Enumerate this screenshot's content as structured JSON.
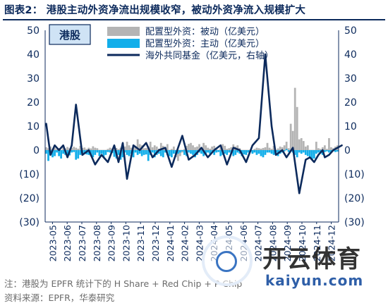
{
  "title": "图表2： 港股主动外资净流出规模收窄，被动外资净流入规模扩大",
  "chart_data": {
    "type": "bar",
    "panel_label": "港股",
    "yticks_left": [
      "50",
      "40",
      "30",
      "20",
      "10",
      "0",
      "(10)",
      "(20)",
      "(30)"
    ],
    "yticks_right": [
      "50",
      "40",
      "30",
      "20",
      "10",
      "0",
      "(10)",
      "(20)",
      "(30)"
    ],
    "ylim": [
      -30,
      50
    ],
    "y2lim": [
      -30,
      50
    ],
    "xticks": [
      "2023-05",
      "2023-06",
      "2023-07",
      "2023-08",
      "2023-09",
      "2023-10",
      "2023-11",
      "2023-12",
      "2024-01",
      "2024-02",
      "2024-03",
      "2024-04",
      "2024-05",
      "2024-06",
      "2024-07",
      "2024-08",
      "2024-09",
      "2024-10",
      "2024-11",
      "2024-12"
    ],
    "legend": [
      {
        "label": "配置型外资：被动（亿美元）",
        "color": "#b4b4b4",
        "kind": "bar"
      },
      {
        "label": "配置型外资：主动（亿美元）",
        "color": "#12aeea",
        "kind": "bar"
      },
      {
        "label": "海外共同基金（亿美元，右轴）",
        "color": "#0c2a5c",
        "kind": "line"
      }
    ],
    "series": [
      {
        "name": "配置型外资：被动（亿美元）",
        "axis": "left",
        "values": [
          1.2,
          0.8,
          1.5,
          0.6,
          1.0,
          0.4,
          0.9,
          -0.5,
          1.1,
          0.7,
          1.3,
          0.8,
          0.9,
          1.4,
          1.0,
          0.6,
          1.8,
          0.9,
          1.1,
          0.5,
          1.0,
          0.7,
          1.6,
          1.0,
          0.8,
          -0.8,
          -1.0,
          -0.6,
          -0.4,
          0.5,
          1.0,
          0.7,
          1.3,
          0.9,
          0.4,
          1.0,
          3.0,
          1.5,
          3.5,
          2.0,
          1.0,
          2.2,
          1.2,
          4.5,
          2.5,
          2.0,
          0.8,
          0.9,
          1.5,
          3.5,
          1.2,
          2.0,
          1.5,
          0.6,
          3.0,
          1.8,
          1.0,
          2.5,
          -0.4,
          0.5,
          1.5,
          -3.0,
          -4.5,
          -2.5,
          -1.0,
          0.5,
          1.8,
          2.6,
          3.0,
          2.0,
          1.2,
          1.5,
          2.5,
          0.8,
          3.0,
          2.0,
          1.0,
          0.6,
          1.5,
          1.8,
          1.0,
          -0.3,
          1.0,
          2.5,
          1.8,
          0.5,
          0.8,
          1.2,
          2.4,
          1.5,
          2.0,
          0.8,
          -0.5,
          -1.2,
          -1.4,
          -0.8,
          -0.6,
          -1.0,
          0.5,
          1.0,
          0.8,
          0.6,
          0.9,
          1.2,
          3.0,
          1.0,
          0.5,
          1.8,
          -0.5,
          0.7,
          1.5,
          1.2,
          2.0,
          3.5,
          0.8,
          11.0,
          8.0,
          26.0,
          18.0,
          4.5,
          5.0,
          3.8,
          1.5,
          2.0,
          -1.0,
          -1.8,
          -1.2,
          3.5,
          0.8,
          0.5,
          1.2,
          2.0,
          0.5,
          5.0,
          1.2,
          0.8,
          1.5,
          2.0
        ],
        "color": "#b4b4b4"
      },
      {
        "name": "配置型外资：主动（亿美元）",
        "axis": "left",
        "values": [
          -1.5,
          -4.5,
          -2.0,
          -3.0,
          -2.5,
          -1.0,
          -2.5,
          -3.5,
          -1.5,
          -2.0,
          -3.0,
          -2.2,
          -1.0,
          -0.8,
          -4.0,
          -3.5,
          -2.0,
          -1.2,
          -1.5,
          -1.8,
          -2.0,
          -2.5,
          -3.0,
          -2.0,
          -1.0,
          -2.5,
          -1.5,
          -3.0,
          -2.0,
          -0.8,
          -1.0,
          -1.2,
          -2.8,
          -3.5,
          -2.0,
          -4.0,
          -3.0,
          -1.0,
          -2.0,
          -2.5,
          -1.5,
          -3.0,
          -1.0,
          -2.0,
          -1.5,
          -2.5,
          -2.0,
          -1.8,
          -4.5,
          -2.0,
          -1.0,
          -3.0,
          -2.0,
          -1.5,
          -2.5,
          -3.0,
          -1.0,
          -2.0,
          -2.5,
          -3.0,
          -1.5,
          -2.0,
          -1.5,
          -1.0,
          -0.5,
          -2.0,
          -2.5,
          -1.0,
          -1.5,
          -2.0,
          -3.0,
          -2.0,
          -1.0,
          -1.5,
          -2.5,
          -2.0,
          -1.0,
          -1.5,
          -1.0,
          -2.0,
          -1.0,
          -0.8,
          -2.5,
          -2.0,
          -1.5,
          -2.0,
          -1.0,
          -1.5,
          -2.5,
          -2.0,
          -1.0,
          -1.5,
          -2.5,
          -1.8,
          -2.0,
          -1.0,
          -0.8,
          -1.5,
          -1.0,
          -2.0,
          -1.5,
          -2.5,
          -3.0,
          -2.0,
          -1.0,
          -1.0,
          -1.5,
          -2.0,
          -1.0,
          -2.5,
          -1.5,
          -1.0,
          -0.5,
          0.5,
          -0.8,
          -0.5,
          -1.0,
          -2.0,
          -3.0,
          -1.0,
          -1.5,
          -1.0,
          -2.0,
          -2.5,
          -3.0,
          -4.0,
          -3.5,
          -1.5,
          -1.0,
          -1.5,
          -2.0,
          -0.8,
          -0.5,
          -1.0,
          -1.0,
          -0.5,
          -0.8,
          -0.6
        ],
        "color": "#12aeea"
      },
      {
        "name": "海外共同基金（亿美元，右轴）",
        "axis": "right",
        "x": [
          0,
          2,
          4,
          6,
          8,
          10,
          12,
          14,
          17,
          20,
          23,
          26,
          29,
          32,
          34,
          36,
          38,
          41,
          44,
          47,
          50,
          53,
          56,
          59,
          62,
          64,
          67,
          70,
          73,
          76,
          79,
          82,
          85,
          88,
          91,
          94,
          97,
          100,
          103,
          106,
          108,
          111,
          113,
          116,
          119,
          122,
          124,
          126,
          128,
          130,
          131,
          133,
          135,
          137,
          139
        ],
        "values": [
          11,
          -2,
          2,
          0,
          2,
          -3,
          2,
          19,
          -2,
          0,
          -6,
          -2,
          -5,
          2,
          -5,
          3,
          -12,
          2,
          0,
          3,
          -3,
          0,
          1,
          -7,
          1,
          6,
          -4,
          -2,
          1,
          -3,
          0,
          2,
          -6,
          1,
          0,
          -5,
          2,
          5,
          40,
          10,
          -2,
          0,
          -3,
          1,
          -18,
          -4,
          -3,
          -5,
          -2,
          0,
          -3,
          -2,
          0,
          1,
          2
        ],
        "color": "#0c2a5c"
      }
    ]
  },
  "footer": {
    "note": "注：港股为 EPFR 统计下的 H Share + Red Chip + P Chip",
    "source": "资料来源：EPFR，华泰研究"
  },
  "watermark": {
    "brand": "开云体育",
    "url": "kaiyun.com"
  }
}
